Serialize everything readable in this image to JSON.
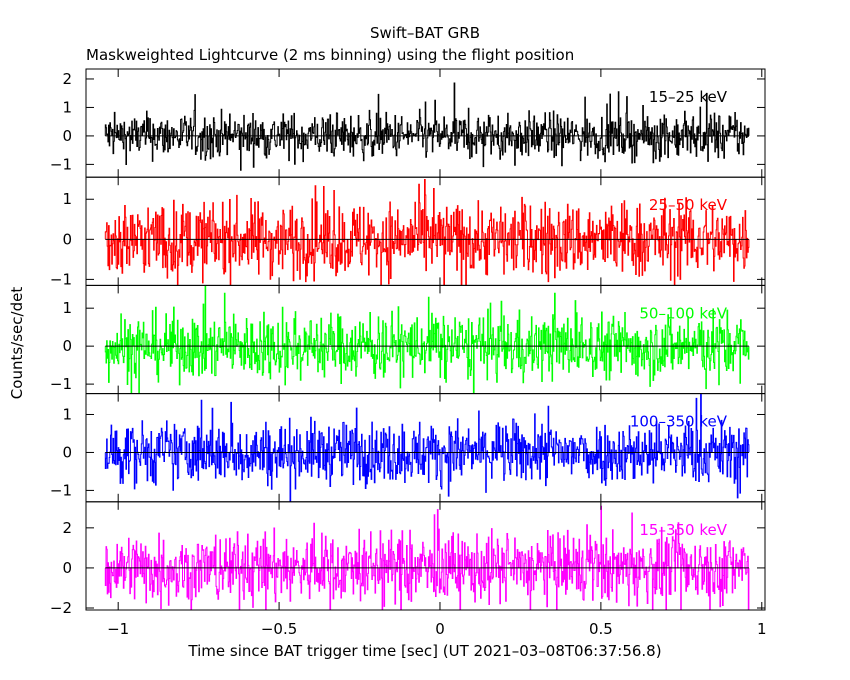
{
  "chart_data": {
    "type": "line",
    "title": "Swift–BAT GRB",
    "subtitle": "Maskweighted Lightcurve (2 ms binning) using the flight position",
    "xlabel": "Time since BAT trigger time [sec] (UT 2021–03–08T06:37:56.8)",
    "ylabel": "Counts/sec/det",
    "xlim": [
      -1.1,
      1.01
    ],
    "x_ticks": [
      -1,
      -0.5,
      0,
      0.5,
      1
    ],
    "x_tick_labels": [
      "−1",
      "−0.5",
      "0",
      "0.5",
      "1"
    ],
    "data_range": [
      -1.04,
      0.96
    ],
    "grid": false,
    "panels": [
      {
        "name": "15–25 keV",
        "color": "#000000",
        "ylim": [
          -1.45,
          2.35
        ],
        "yticks": [
          -1,
          0,
          1,
          2
        ],
        "ytick_labels": [
          "−1",
          "0",
          "1",
          "2"
        ],
        "noise_sigma": 0.38
      },
      {
        "name": "25–50 keV",
        "color": "#ff0000",
        "ylim": [
          -1.15,
          1.55
        ],
        "yticks": [
          -1,
          0,
          1
        ],
        "ytick_labels": [
          "−1",
          "0",
          "1"
        ],
        "noise_sigma": 0.45
      },
      {
        "name": "50–100 keV",
        "color": "#00ff00",
        "ylim": [
          -1.25,
          1.6
        ],
        "yticks": [
          -1,
          0,
          1
        ],
        "ytick_labels": [
          "−1",
          "0",
          "1"
        ],
        "noise_sigma": 0.42
      },
      {
        "name": "100–350 keV",
        "color": "#0000ff",
        "ylim": [
          -1.3,
          1.55
        ],
        "yticks": [
          -1,
          0,
          1
        ],
        "ytick_labels": [
          "−1",
          "0",
          "1"
        ],
        "noise_sigma": 0.4
      },
      {
        "name": "15–350 keV",
        "color": "#ff00ff",
        "ylim": [
          -2.1,
          3.3
        ],
        "yticks": [
          -2,
          0,
          2
        ],
        "ytick_labels": [
          "−2",
          "0",
          "2"
        ],
        "noise_sigma": 0.85
      }
    ]
  }
}
